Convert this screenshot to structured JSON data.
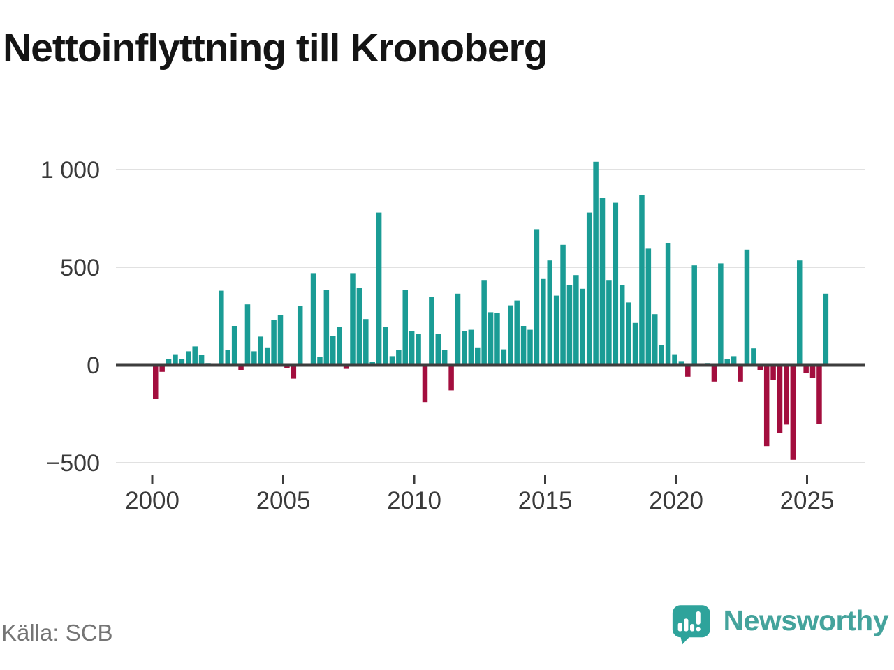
{
  "title": "Nettoinflyttning till Kronoberg",
  "source": "Källa: SCB",
  "logo": {
    "wordmark": "Newsworthy",
    "icon": "newsworthy-bubble-chart-icon"
  },
  "chart_data": {
    "type": "bar",
    "title": "Nettoinflyttning till Kronoberg",
    "xlabel": "",
    "ylabel": "",
    "x_unit": "quarter",
    "start_period": "2000-Q1",
    "end_period": "2025-Q3",
    "ylim": [
      -560,
      1120
    ],
    "grid": "horizontal",
    "legend": "none",
    "colors": {
      "positive": "#1a9c95",
      "negative": "#a30e3e",
      "axis": "#3d3d3d",
      "gridline": "#e1e1e1",
      "tick_label": "#3a3a3a"
    },
    "y_ticks": [
      {
        "v": 1000,
        "label": "1 000"
      },
      {
        "v": 500,
        "label": "500"
      },
      {
        "v": 0,
        "label": "0"
      },
      {
        "v": -500,
        "label": "−500"
      }
    ],
    "x_ticks": [
      {
        "year": 2000,
        "label": "2000"
      },
      {
        "year": 2005,
        "label": "2005"
      },
      {
        "year": 2010,
        "label": "2010"
      },
      {
        "year": 2015,
        "label": "2015"
      },
      {
        "year": 2020,
        "label": "2020"
      },
      {
        "year": 2025,
        "label": "2025"
      }
    ],
    "values": [
      -175,
      -35,
      30,
      55,
      30,
      70,
      95,
      50,
      10,
      5,
      380,
      75,
      200,
      -25,
      310,
      70,
      145,
      90,
      230,
      255,
      -15,
      -70,
      300,
      0,
      470,
      40,
      385,
      150,
      195,
      -20,
      470,
      395,
      235,
      15,
      780,
      195,
      45,
      75,
      385,
      175,
      160,
      -190,
      350,
      160,
      75,
      -130,
      365,
      175,
      180,
      90,
      435,
      270,
      265,
      80,
      305,
      330,
      200,
      180,
      695,
      440,
      535,
      355,
      615,
      410,
      460,
      390,
      780,
      1040,
      855,
      435,
      830,
      410,
      320,
      215,
      870,
      595,
      260,
      100,
      625,
      55,
      20,
      -60,
      510,
      0,
      10,
      -85,
      520,
      30,
      45,
      -85,
      590,
      85,
      -25,
      -415,
      -75,
      -350,
      -305,
      -485,
      535,
      -40,
      -65,
      -300,
      365
    ]
  }
}
